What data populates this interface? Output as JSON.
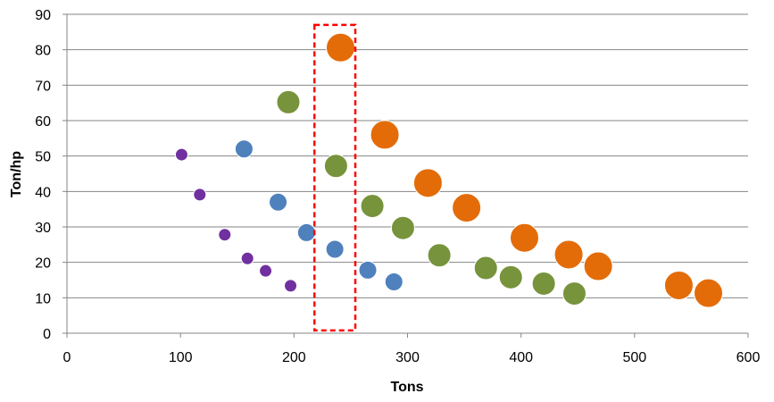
{
  "chart_data": {
    "type": "scatter",
    "title": "",
    "xlabel": "Tons",
    "ylabel": "Ton/hp",
    "xlim": [
      0,
      600
    ],
    "ylim": [
      0,
      90
    ],
    "xticks": [
      0,
      100,
      200,
      300,
      400,
      500,
      600
    ],
    "yticks": [
      0,
      10,
      20,
      30,
      40,
      50,
      60,
      70,
      80,
      90
    ],
    "grid": "horizontal",
    "legend": "none",
    "series": [
      {
        "name": "purple",
        "color": "#7030A0",
        "size": 1,
        "x": [
          101,
          117,
          139,
          159,
          175,
          197
        ],
        "y": [
          50.4,
          39.1,
          27.8,
          21.1,
          17.6,
          13.4
        ]
      },
      {
        "name": "blue",
        "color": "#4F81BD",
        "size": 2,
        "x": [
          156,
          186,
          211,
          236,
          265,
          288
        ],
        "y": [
          52,
          37,
          28.4,
          23.7,
          17.8,
          14.5
        ]
      },
      {
        "name": "green",
        "color": "#77933C",
        "size": 3,
        "x": [
          195,
          237,
          269,
          296,
          328,
          369,
          391,
          420,
          447
        ],
        "y": [
          65.2,
          47.2,
          35.9,
          29.7,
          22,
          18.4,
          15.8,
          14,
          11.2
        ]
      },
      {
        "name": "orange",
        "color": "#E36C09",
        "size": 4,
        "x": [
          241,
          280,
          318,
          352,
          403,
          442,
          468,
          539,
          565
        ],
        "y": [
          80.6,
          56,
          42.4,
          35.4,
          26.9,
          22.2,
          18.9,
          13.5,
          11.3
        ]
      }
    ],
    "highlight": {
      "color": "#FF0000",
      "x": [
        218,
        254
      ],
      "y": [
        0.8,
        87
      ]
    }
  }
}
